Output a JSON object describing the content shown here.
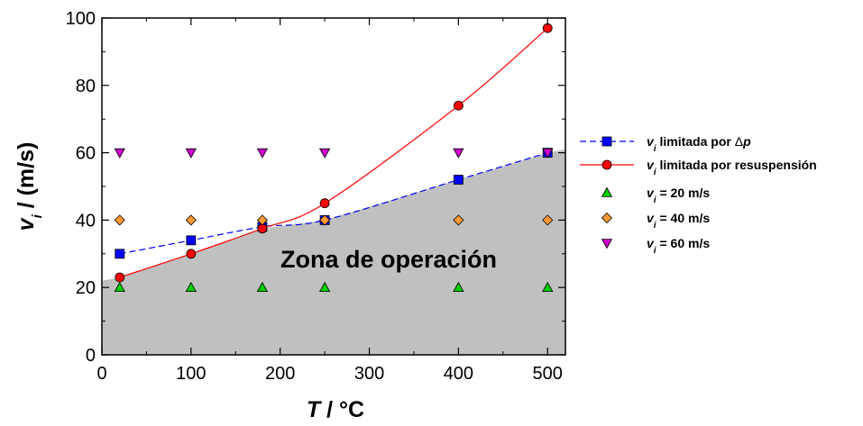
{
  "chart_data": {
    "type": "scatter",
    "title": "",
    "xlabel": {
      "var": "T",
      "unit": " / °C"
    },
    "ylabel": {
      "var": "v",
      "sub": "i",
      "unit": " / (m/s)"
    },
    "xlim": [
      0,
      520
    ],
    "ylim": [
      0,
      100
    ],
    "xticks": [
      0,
      100,
      200,
      300,
      400,
      500
    ],
    "yticks": [
      0,
      20,
      40,
      60,
      80,
      100
    ],
    "grid": false,
    "legend_position": "right",
    "region": {
      "label": "Zona de operación",
      "color": "#c0c0c0",
      "boundary": [
        [
          0,
          22
        ],
        [
          20,
          23
        ],
        [
          100,
          30
        ],
        [
          180,
          37.5
        ],
        [
          250,
          40
        ],
        [
          400,
          52
        ],
        [
          500,
          60
        ],
        [
          520,
          61
        ]
      ]
    },
    "series": [
      {
        "name": {
          "var": "v",
          "sub": "i",
          "text": " limitada por ",
          "delta": "Δ",
          "p": "p"
        },
        "style": "dashed-line",
        "marker": "square",
        "color": "#0000ff",
        "x": [
          20,
          100,
          180,
          250,
          400,
          500
        ],
        "y": [
          30,
          34,
          38,
          40,
          52,
          60
        ]
      },
      {
        "name": {
          "var": "v",
          "sub": "i",
          "text": " limitada por resuspensión"
        },
        "style": "solid-line",
        "marker": "circle",
        "color": "#ff0000",
        "x": [
          20,
          100,
          180,
          250,
          400,
          500
        ],
        "y": [
          23,
          30,
          37.5,
          45,
          74,
          97
        ]
      },
      {
        "name": {
          "var": "v",
          "sub": "i",
          "text": " = 20 m/s"
        },
        "style": "none",
        "marker": "triangle-up",
        "color": "#00cc00",
        "x": [
          20,
          100,
          180,
          250,
          400,
          500
        ],
        "y": [
          20,
          20,
          20,
          20,
          20,
          20
        ]
      },
      {
        "name": {
          "var": "v",
          "sub": "i",
          "text": " = 40 m/s"
        },
        "style": "none",
        "marker": "diamond",
        "color": "#ff9933",
        "x": [
          20,
          100,
          180,
          250,
          400,
          500
        ],
        "y": [
          40,
          40,
          40,
          40,
          40,
          40
        ]
      },
      {
        "name": {
          "var": "v",
          "sub": "i",
          "text": " = 60 m/s"
        },
        "style": "none",
        "marker": "triangle-down",
        "color": "#cc00cc",
        "x": [
          20,
          100,
          180,
          250,
          400,
          500
        ],
        "y": [
          60,
          60,
          60,
          60,
          60,
          60
        ]
      }
    ]
  }
}
